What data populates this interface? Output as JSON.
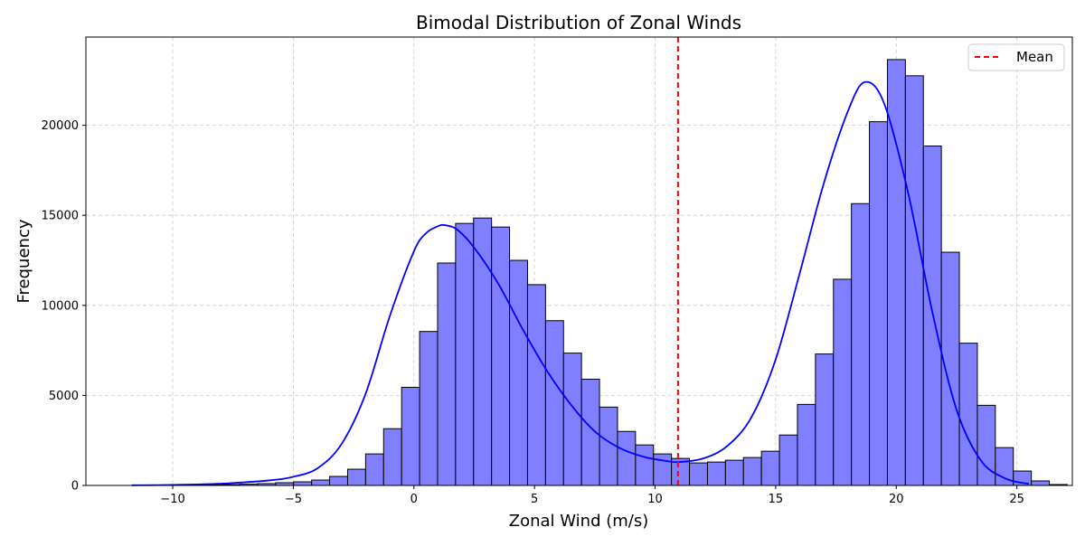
{
  "chart_data": {
    "type": "histogram",
    "title": "Bimodal Distribution of Zonal Winds",
    "xlabel": "Zonal Wind (m/s)",
    "ylabel": "Frequency",
    "xlim": [
      -13.6,
      27.3
    ],
    "ylim": [
      0,
      24900
    ],
    "grid": true,
    "legend_position": "top-right",
    "x_ticks": [
      -10,
      -5,
      0,
      5,
      10,
      15,
      20,
      25
    ],
    "y_ticks": [
      0,
      5000,
      10000,
      15000,
      20000
    ],
    "bin_start": -11.7,
    "bin_width": 0.746,
    "bin_counts": [
      5,
      10,
      15,
      25,
      35,
      50,
      70,
      100,
      150,
      200,
      300,
      500,
      900,
      1750,
      3150,
      5450,
      8550,
      12350,
      14550,
      14850,
      14350,
      12500,
      11150,
      9150,
      7350,
      5900,
      4350,
      3000,
      2250,
      1750,
      1500,
      1250,
      1300,
      1400,
      1550,
      1900,
      2800,
      4500,
      7300,
      11450,
      15650,
      20200,
      23650,
      22750,
      18850,
      12950,
      7900,
      4450,
      2100,
      800,
      250,
      50
    ],
    "kde": {
      "x": [
        -11.7,
        -10.0,
        -8.0,
        -6.0,
        -5.0,
        -4.0,
        -3.0,
        -2.0,
        -1.0,
        0.0,
        0.5,
        1.0,
        1.3,
        1.8,
        2.5,
        3.5,
        4.5,
        5.5,
        6.5,
        7.5,
        8.5,
        9.5,
        10.5,
        11.0,
        12.0,
        13.0,
        14.0,
        15.0,
        16.0,
        17.0,
        18.0,
        18.7,
        19.5,
        20.5,
        21.5,
        22.5,
        23.5,
        24.5,
        25.5
      ],
      "y": [
        10,
        30,
        100,
        280,
        480,
        950,
        2300,
        5100,
        9400,
        13000,
        14000,
        14400,
        14450,
        14200,
        13200,
        11200,
        8700,
        6400,
        4500,
        3000,
        2100,
        1600,
        1350,
        1300,
        1500,
        2200,
        3800,
        7000,
        11800,
        16800,
        20800,
        22400,
        21200,
        16200,
        9600,
        4200,
        1400,
        400,
        80
      ]
    },
    "series": [
      {
        "name": "Mean",
        "value": 10.95,
        "color": "#ff0000",
        "style": "dashed"
      }
    ],
    "colors": {
      "bar_fill": "#7f7fff",
      "bar_edge": "#000000",
      "kde_line": "#0000ff",
      "mean_line": "#ff0000",
      "grid": "#cccccc"
    }
  }
}
